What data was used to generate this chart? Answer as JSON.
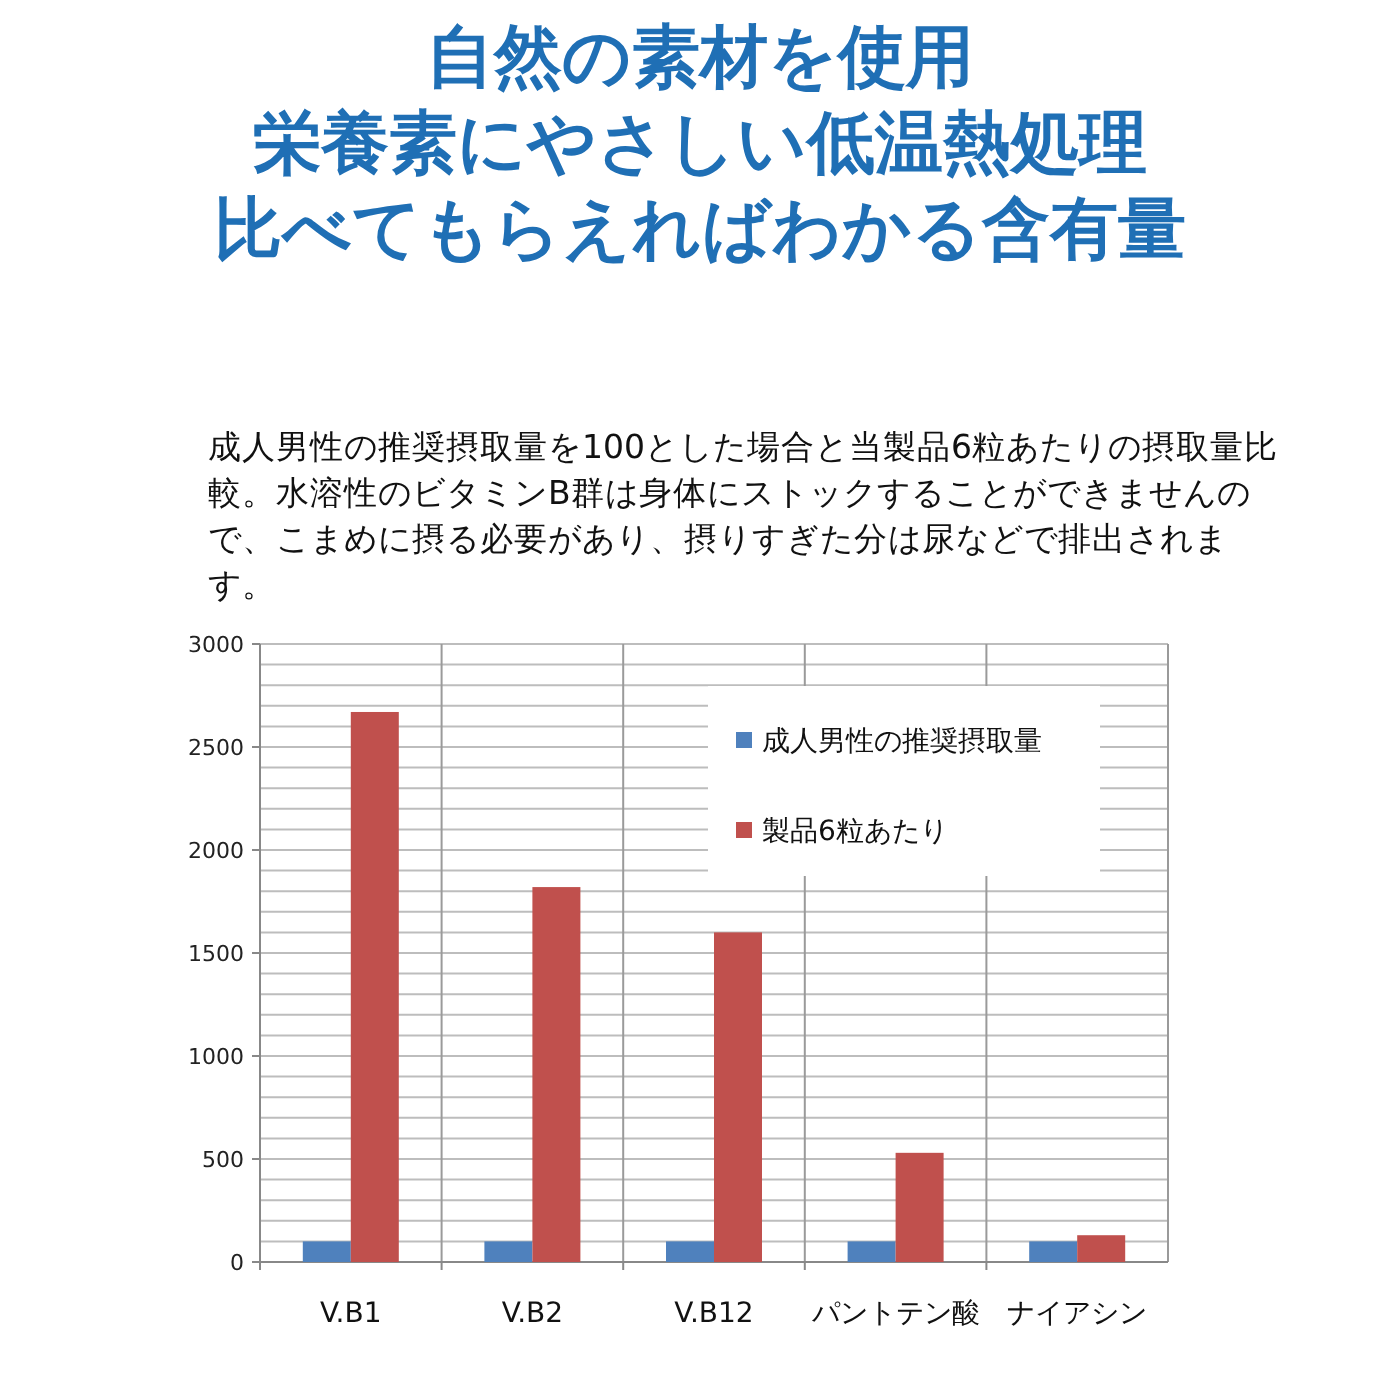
{
  "chart_data": {
    "type": "bar",
    "title": "自然の素材を使用",
    "subtitle": "栄養素にやさしい低温熱処理",
    "annotations": [
      "比べてもらえればわかる含有量",
      "成人男性の推奨摂取量を100とした場合と当製品6粒あたりの摂取量比較。水溶性のビタミンB群は身体にストックすることができませんので、こまめに摂る必要があり、摂りすぎた分は尿などで排出されます。"
    ],
    "categories": [
      "V.B1",
      "V.B2",
      "V.B12",
      "パントテン酸",
      "ナイアシン"
    ],
    "series": [
      {
        "name": "成人男性の推奨摂取量",
        "color": "#4f81bd",
        "values": [
          100,
          100,
          100,
          100,
          100
        ]
      },
      {
        "name": "製品6粒あたり",
        "color": "#c0504d",
        "values": [
          2670,
          1820,
          1600,
          530,
          130
        ]
      }
    ],
    "ylim": [
      0,
      3000
    ],
    "yticks": [
      0,
      500,
      1000,
      1500,
      2000,
      2500,
      3000
    ],
    "grid": true,
    "legend": "top right"
  }
}
